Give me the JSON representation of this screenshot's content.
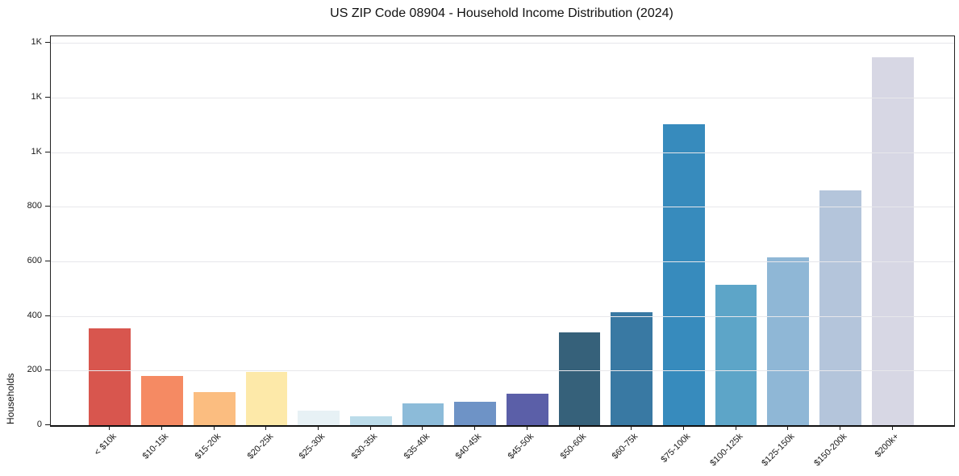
{
  "chart_data": {
    "type": "bar",
    "title": "US ZIP Code 08904 - Household Income Distribution (2024)",
    "xlabel": "",
    "ylabel": "Households",
    "categories": [
      "< $10k",
      "$10-15k",
      "$15-20k",
      "$20-25k",
      "$25-30k",
      "$30-35k",
      "$35-40k",
      "$40-45k",
      "$45-50k",
      "$50-60k",
      "$60-75k",
      "$75-100k",
      "$100-125k",
      "$125-150k",
      "$150-200k",
      "$200k+"
    ],
    "values": [
      356,
      180,
      121,
      196,
      54,
      33,
      81,
      86,
      114,
      339,
      414,
      1103,
      515,
      616,
      860,
      1347
    ],
    "bar_colors": [
      "#d8564e",
      "#f58a63",
      "#fbbd80",
      "#fde9a9",
      "#e7f1f5",
      "#bcdcea",
      "#8cbbd9",
      "#6e93c6",
      "#5b5fa8",
      "#36617a",
      "#3979a3",
      "#378bbd",
      "#5da5c8",
      "#8fb7d6",
      "#b4c5db",
      "#d7d7e4"
    ],
    "ylim": [
      0,
      1425
    ],
    "yticks": [
      0,
      200,
      400,
      600,
      800,
      1000,
      1200,
      1400
    ],
    "ytick_labels": [
      "0",
      "200",
      "400",
      "600",
      "800",
      "1K",
      "1K",
      "1K"
    ],
    "grid": "horizontal",
    "legend": "none",
    "background": "#ffffff",
    "tick_color": "#1a1a1a",
    "grid_color": "#e7e7eb"
  }
}
